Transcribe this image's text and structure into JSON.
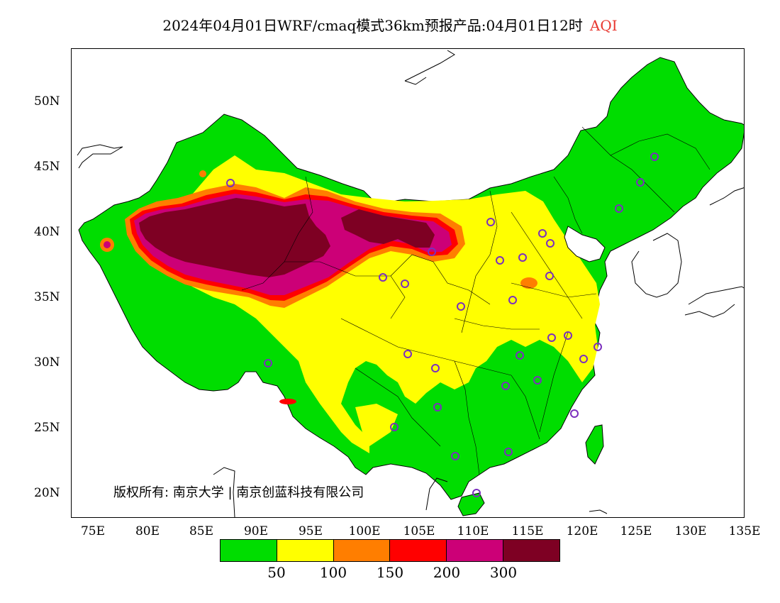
{
  "title": {
    "text": "2024年04月01日WRF/cmaq模式36km预报产品:04月01日12时",
    "variable": "AQI"
  },
  "copyright": "版权所有: 南京大学 | 南京创蓝科技有限公司",
  "axes": {
    "lat_ticks": [
      "50N",
      "45N",
      "40N",
      "35N",
      "30N",
      "25N",
      "20N"
    ],
    "lon_ticks": [
      "75E",
      "80E",
      "85E",
      "90E",
      "95E",
      "100E",
      "105E",
      "110E",
      "115E",
      "120E",
      "125E",
      "130E",
      "135E"
    ]
  },
  "legend": {
    "colors": [
      "#00dd00",
      "#ffff00",
      "#ff7e00",
      "#ff0000",
      "#cc0077",
      "#7e0023"
    ],
    "ticks": [
      "50",
      "100",
      "150",
      "200",
      "300"
    ]
  },
  "station_marker_color": "#7b2fbe",
  "border_color": "#000000"
}
